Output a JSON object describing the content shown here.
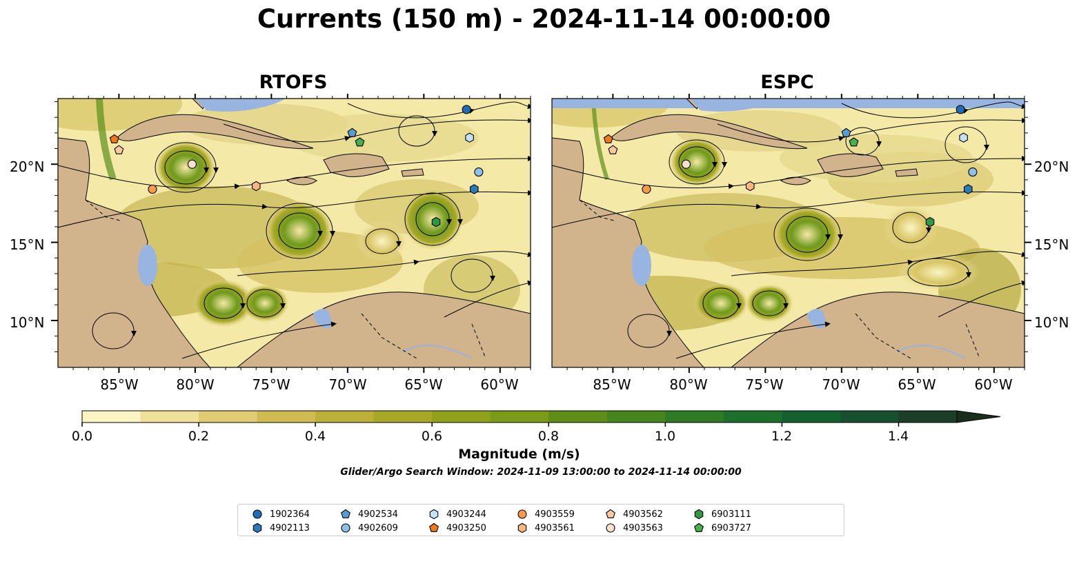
{
  "title": "Currents (150 m) - 2024-11-14 00:00:00",
  "panels": [
    {
      "title": "RTOFS"
    },
    {
      "title": "ESPC"
    }
  ],
  "axes": {
    "lat_labels": [
      "20°N",
      "15°N",
      "10°N"
    ],
    "lon_labels": [
      "85°W",
      "80°W",
      "75°W",
      "70°W",
      "65°W",
      "60°W"
    ]
  },
  "colorbar": {
    "label": "Magnitude (m/s)",
    "ticks": [
      "0.0",
      "0.2",
      "0.4",
      "0.6",
      "0.8",
      "1.0",
      "1.2",
      "1.4"
    ],
    "range": [
      0,
      1.5
    ],
    "extend": "max",
    "colors": [
      "#fbf5c3",
      "#efe09a",
      "#e0cc74",
      "#d0bb52",
      "#bcb03a",
      "#a8a828",
      "#92a11c",
      "#7a9a18",
      "#5f8e18",
      "#46841e",
      "#2f7a24",
      "#1e6e2c",
      "#15602e",
      "#16502e",
      "#1a3e28"
    ]
  },
  "search_window": "Glider/Argo Search Window: 2024-11-09 13:00:00 to 2024-11-14 00:00:00",
  "colors": {
    "land": "#d2b48c",
    "water": "#98b4e0"
  },
  "floats": [
    {
      "id": "1902364",
      "marker": "circle",
      "color": "#1f6db4"
    },
    {
      "id": "4902113",
      "marker": "hexagon",
      "color": "#2b7bba"
    },
    {
      "id": "4902534",
      "marker": "pentagon",
      "color": "#5a9bd3"
    },
    {
      "id": "4902609",
      "marker": "circle",
      "color": "#8ec1ea"
    },
    {
      "id": "4903244",
      "marker": "hexagon",
      "color": "#c6e2f7"
    },
    {
      "id": "4903250",
      "marker": "pentagon",
      "color": "#f07818"
    },
    {
      "id": "4903559",
      "marker": "circle",
      "color": "#f79a4a"
    },
    {
      "id": "4903561",
      "marker": "hexagon",
      "color": "#fbb67e"
    },
    {
      "id": "4903562",
      "marker": "pentagon",
      "color": "#fbc9a0"
    },
    {
      "id": "4903563",
      "marker": "circle",
      "color": "#fde2cb"
    },
    {
      "id": "6903111",
      "marker": "hexagon",
      "color": "#2e9a3e"
    },
    {
      "id": "6903727",
      "marker": "pentagon",
      "color": "#49b04a"
    }
  ],
  "float_positions": [
    {
      "id": "1902364",
      "lon": -62.2,
      "lat": 23.5
    },
    {
      "id": "4902113",
      "lon": -61.7,
      "lat": 18.4
    },
    {
      "id": "4902534",
      "lon": -69.7,
      "lat": 22.0
    },
    {
      "id": "4902609",
      "lon": -61.4,
      "lat": 19.5
    },
    {
      "id": "4903244",
      "lon": -62.0,
      "lat": 21.7
    },
    {
      "id": "4903250",
      "lon": -85.3,
      "lat": 21.6
    },
    {
      "id": "4903559",
      "lon": -82.8,
      "lat": 18.4
    },
    {
      "id": "4903561",
      "lon": -76.0,
      "lat": 18.6
    },
    {
      "id": "4903562",
      "lon": -85.0,
      "lat": 20.9
    },
    {
      "id": "4903563",
      "lon": -80.2,
      "lat": 20.0
    },
    {
      "id": "6903111",
      "lon": -64.2,
      "lat": 16.3
    },
    {
      "id": "6903727",
      "lon": -69.2,
      "lat": 21.4
    }
  ]
}
